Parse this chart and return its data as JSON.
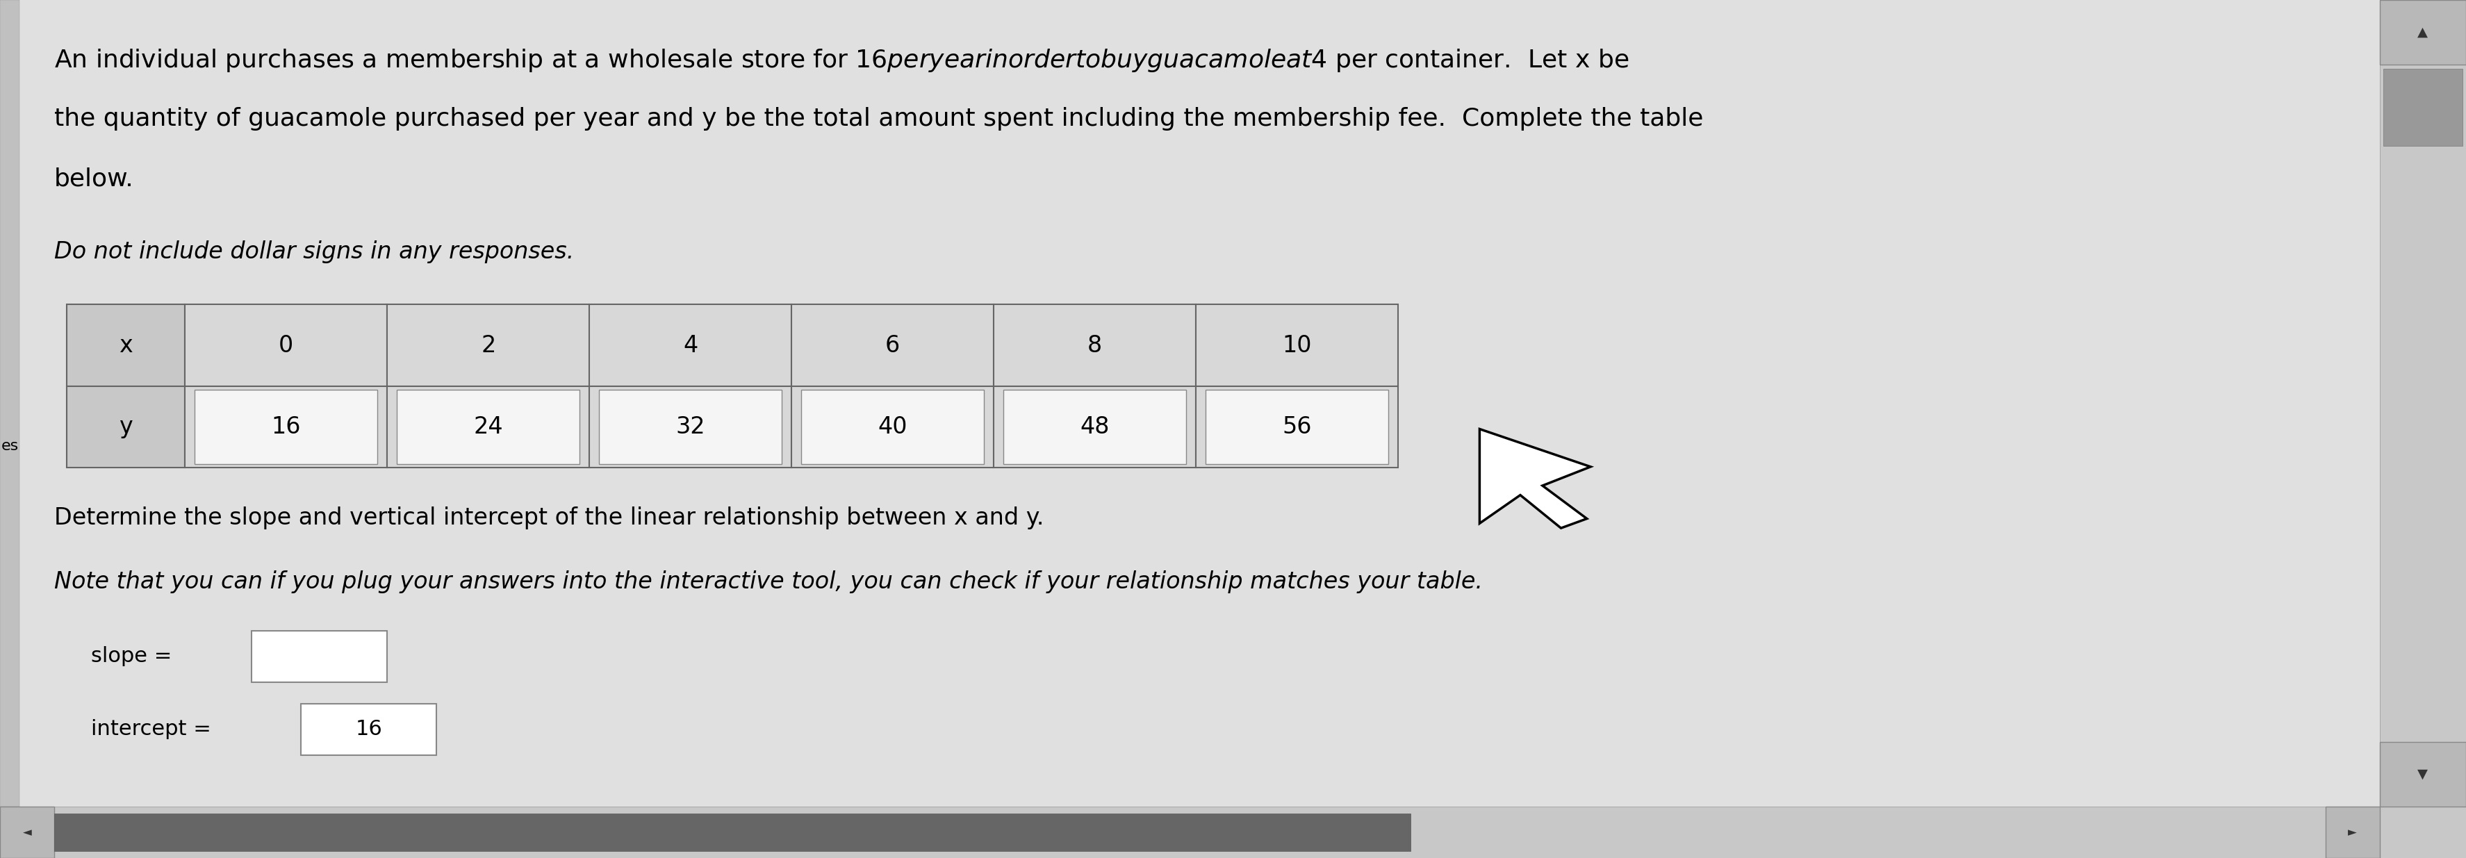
{
  "bg_color": "#d4d4d4",
  "content_bg": "#e0e0e0",
  "title_line1": "An individual purchases a membership at a wholesale store for $16 per year in order to buy guacamole at $4 per container.  Let x be",
  "title_line2": "the quantity of guacamole purchased per year and y be the total amount spent including the membership fee.  Complete the table",
  "title_line3": "below.",
  "subtitle_text": "Do not include dollar signs in any responses.",
  "table_x_vals": [
    "x",
    "0",
    "2",
    "4",
    "6",
    "8",
    "10"
  ],
  "table_y_vals": [
    "y",
    "16",
    "24",
    "32",
    "40",
    "48",
    "56"
  ],
  "determine_line1": "Determine the slope and vertical intercept of the linear relationship between x and y.",
  "determine_line2": "Note that you can if you plug your answers into the interactive tool, you can check if your relationship matches your table.",
  "slope_label": "slope =",
  "intercept_label": "intercept =",
  "intercept_value": "16",
  "left_tab_label": "es",
  "cell_bg_header": "#c8c8c8",
  "cell_bg_data": "#d8d8d8",
  "cell_border_color": "#888888",
  "input_box_bg": "#ffffff",
  "title_fontsize": 26,
  "subtitle_fontsize": 24,
  "table_fontsize": 24,
  "body_fontsize": 24,
  "label_fontsize": 22,
  "scrollbar_dark": "#555555",
  "scrollbar_mid": "#999999",
  "scrollbar_light": "#cccccc"
}
